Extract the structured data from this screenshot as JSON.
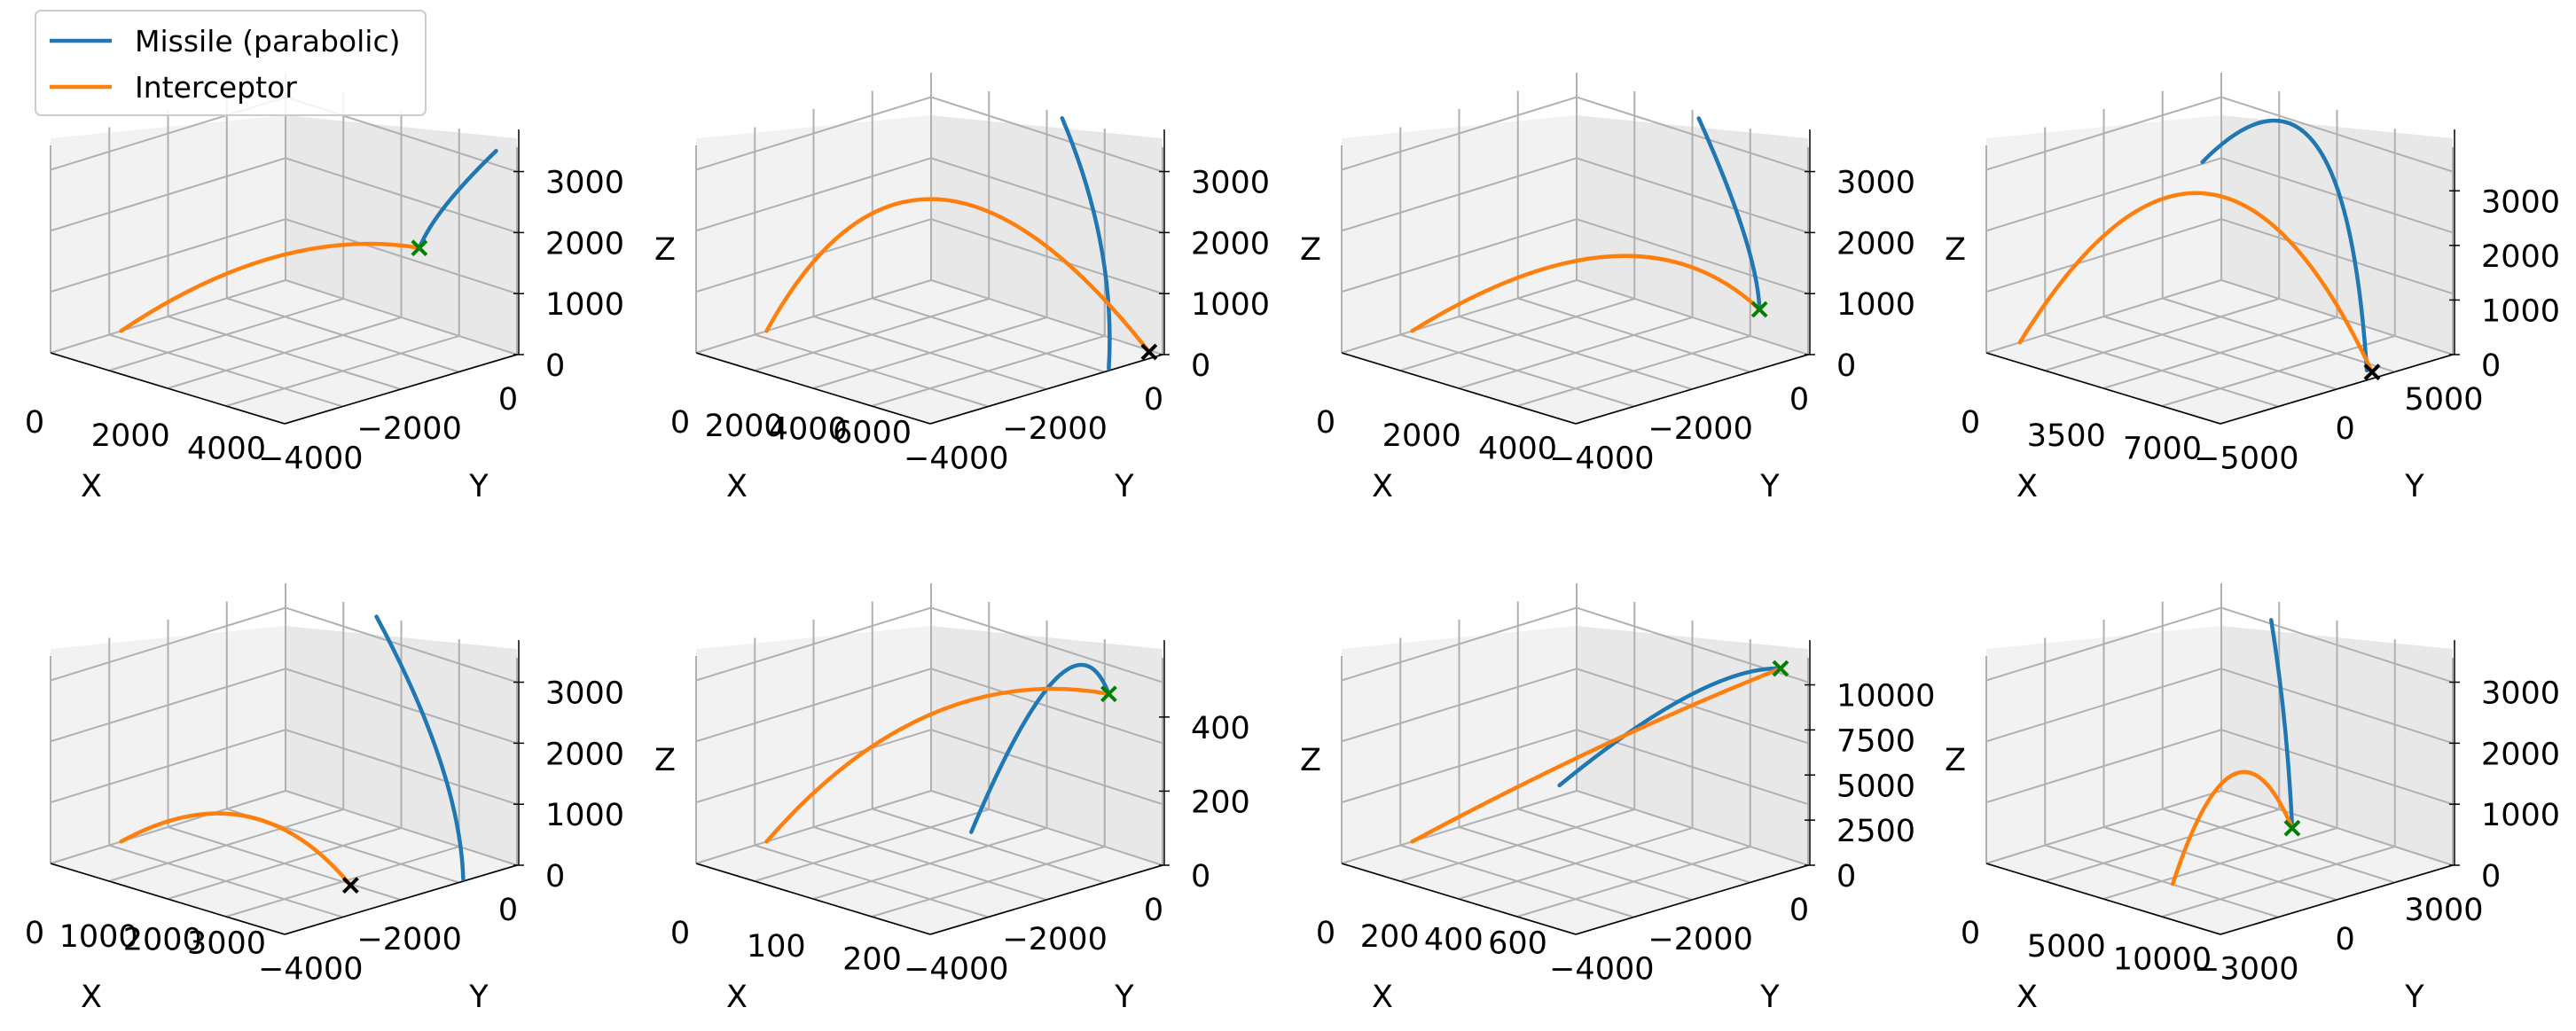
{
  "chart_data": {
    "type": "line3d",
    "legend": {
      "placement": "upper-left",
      "entries": [
        {
          "label": "Missile (parabolic)",
          "color": "#1f77b4"
        },
        {
          "label": "Interceptor",
          "color": "#ff7f0e"
        }
      ]
    },
    "colors": {
      "missile": "#1f77b4",
      "interceptor": "#ff7f0e",
      "hit_marker": "#008000",
      "miss_marker": "#000000",
      "pane_light": "#f2f2f2",
      "pane_dark": "#e8e8e8",
      "grid": "#b0b0b0"
    },
    "subplots": [
      {
        "xlabel": "X",
        "ylabel": "Y",
        "zlabel": "",
        "xticks": [
          "0",
          "2000",
          "4000"
        ],
        "yticks": [
          "−4000",
          "−2000",
          "0"
        ],
        "zticks": [
          "0",
          "1000",
          "2000",
          "3000"
        ],
        "xlim": [
          0,
          5500
        ],
        "ylim": [
          -5000,
          0
        ],
        "zlim": [
          0,
          3400
        ],
        "marker": {
          "symbol": "x",
          "status": "hit",
          "point": [
            4800,
            -1500,
            1900
          ]
        },
        "missile": [
          [
            5500,
            -500,
            3400
          ],
          [
            5100,
            -1200,
            2600
          ],
          [
            4800,
            -1500,
            1900
          ]
        ],
        "interceptor": [
          [
            0,
            -3500,
            0
          ],
          [
            2500,
            -2500,
            1500
          ],
          [
            4800,
            -1500,
            1900
          ]
        ]
      },
      {
        "xlabel": "X",
        "ylabel": "Y",
        "zlabel": "Z",
        "xticks": [
          "0",
          "2000",
          "4000",
          "6000"
        ],
        "yticks": [
          "−4000",
          "−2000",
          "0"
        ],
        "zticks": [
          "0",
          "1000",
          "2000",
          "3000"
        ],
        "xlim": [
          0,
          7000
        ],
        "ylim": [
          -5000,
          0
        ],
        "zlim": [
          0,
          3400
        ],
        "marker": {
          "symbol": "x",
          "status": "miss",
          "point": [
            6800,
            -200,
            0
          ]
        },
        "missile": [
          [
            4200,
            -200,
            3400
          ],
          [
            6200,
            -800,
            1800
          ],
          [
            7000,
            -1200,
            0
          ]
        ],
        "interceptor": [
          [
            0,
            -3500,
            0
          ],
          [
            3000,
            -2000,
            2300
          ],
          [
            6800,
            -200,
            0
          ]
        ]
      },
      {
        "xlabel": "X",
        "ylabel": "Y",
        "zlabel": "Z",
        "xticks": [
          "0",
          "2000",
          "4000"
        ],
        "yticks": [
          "−4000",
          "−2000",
          "0"
        ],
        "zticks": [
          "0",
          "1000",
          "2000",
          "3000"
        ],
        "xlim": [
          0,
          5500
        ],
        "ylim": [
          -5000,
          0
        ],
        "zlim": [
          0,
          3400
        ],
        "marker": {
          "symbol": "x",
          "status": "hit",
          "point": [
            5400,
            -1000,
            900
          ]
        },
        "missile": [
          [
            3200,
            -300,
            3400
          ],
          [
            4800,
            -800,
            2000
          ],
          [
            5400,
            -1000,
            900
          ]
        ],
        "interceptor": [
          [
            0,
            -3500,
            0
          ],
          [
            3000,
            -2000,
            1500
          ],
          [
            5400,
            -1000,
            900
          ]
        ]
      },
      {
        "xlabel": "X",
        "ylabel": "Y",
        "zlabel": "Z",
        "xticks": [
          "0",
          "3500",
          "7000"
        ],
        "yticks": [
          "−5000",
          "0",
          "5000"
        ],
        "zticks": [
          "0",
          "1000",
          "2000",
          "3000"
        ],
        "xlim": [
          0,
          9000
        ],
        "ylim": [
          -7000,
          7000
        ],
        "zlim": [
          0,
          3800
        ],
        "marker": {
          "symbol": "x",
          "status": "miss",
          "point": [
            8700,
            2500,
            0
          ]
        },
        "missile": [
          [
            2500,
            2000,
            3000
          ],
          [
            5500,
            4000,
            3600
          ],
          [
            8500,
            2500,
            0
          ]
        ],
        "interceptor": [
          [
            0,
            -5000,
            0
          ],
          [
            4500,
            -1000,
            3000
          ],
          [
            8700,
            2500,
            0
          ]
        ]
      },
      {
        "xlabel": "X",
        "ylabel": "Y",
        "zlabel": "",
        "xticks": [
          "0",
          "1000",
          "2000",
          "3000"
        ],
        "yticks": [
          "−4000",
          "−2000",
          "0"
        ],
        "zticks": [
          "0",
          "1000",
          "2000",
          "3000"
        ],
        "xlim": [
          0,
          3500
        ],
        "ylim": [
          -5000,
          0
        ],
        "zlim": [
          0,
          3400
        ],
        "marker": {
          "symbol": "x",
          "status": "miss",
          "point": [
            2800,
            -2600,
            0
          ]
        },
        "missile": [
          [
            1500,
            -200,
            3400
          ],
          [
            2800,
            -700,
            1600
          ],
          [
            3500,
            -1200,
            0
          ]
        ],
        "interceptor": [
          [
            0,
            -3500,
            0
          ],
          [
            1500,
            -3000,
            800
          ],
          [
            2800,
            -2600,
            0
          ]
        ]
      },
      {
        "xlabel": "X",
        "ylabel": "Y",
        "zlabel": "Z",
        "xticks": [
          "0",
          "100",
          "200"
        ],
        "yticks": [
          "−4000",
          "−2000",
          "0"
        ],
        "zticks": [
          "0",
          "200",
          "400"
        ],
        "xlim": [
          0,
          300
        ],
        "ylim": [
          -5000,
          0
        ],
        "zlim": [
          0,
          560
        ],
        "marker": {
          "symbol": "x",
          "status": "hit",
          "point": [
            300,
            -1200,
            500
          ]
        },
        "missile": [
          [
            190,
            -2300,
            100
          ],
          [
            250,
            -1500,
            520
          ],
          [
            300,
            -1200,
            500
          ]
        ],
        "interceptor": [
          [
            0,
            -3500,
            0
          ],
          [
            150,
            -2500,
            400
          ],
          [
            300,
            -1200,
            500
          ]
        ]
      },
      {
        "xlabel": "X",
        "ylabel": "Y",
        "zlabel": "Z",
        "xticks": [
          "0",
          "200",
          "400",
          "600"
        ],
        "yticks": [
          "−4000",
          "−2000",
          "0"
        ],
        "zticks": [
          "0",
          "2500",
          "5000",
          "7500",
          "10000"
        ],
        "xlim": [
          0,
          700
        ],
        "ylim": [
          -5000,
          0
        ],
        "zlim": [
          0,
          11500
        ],
        "marker": {
          "symbol": "x",
          "status": "hit",
          "point": [
            680,
            -500,
            11000
          ]
        },
        "missile": [
          [
            300,
            -2500,
            4000
          ],
          [
            500,
            -1200,
            9000
          ],
          [
            680,
            -500,
            11000
          ]
        ],
        "interceptor": [
          [
            0,
            -3500,
            0
          ],
          [
            350,
            -2000,
            6000
          ],
          [
            680,
            -500,
            11000
          ]
        ]
      },
      {
        "xlabel": "X",
        "ylabel": "Y",
        "zlabel": "Z",
        "xticks": [
          "0",
          "5000",
          "10000"
        ],
        "yticks": [
          "−3000",
          "0",
          "3000"
        ],
        "zticks": [
          "0",
          "1000",
          "2000",
          "3000"
        ],
        "xlim": [
          0,
          11000
        ],
        "ylim": [
          -5000,
          5000
        ],
        "zlim": [
          0,
          3400
        ],
        "marker": {
          "symbol": "x",
          "status": "hit",
          "point": [
            8300,
            500,
            800
          ]
        },
        "missile": [
          [
            4000,
            3500,
            3400
          ],
          [
            6500,
            1800,
            2200
          ],
          [
            8300,
            500,
            800
          ]
        ],
        "interceptor": [
          [
            6000,
            -2500,
            0
          ],
          [
            7000,
            -800,
            1700
          ],
          [
            8300,
            500,
            800
          ]
        ]
      }
    ]
  }
}
